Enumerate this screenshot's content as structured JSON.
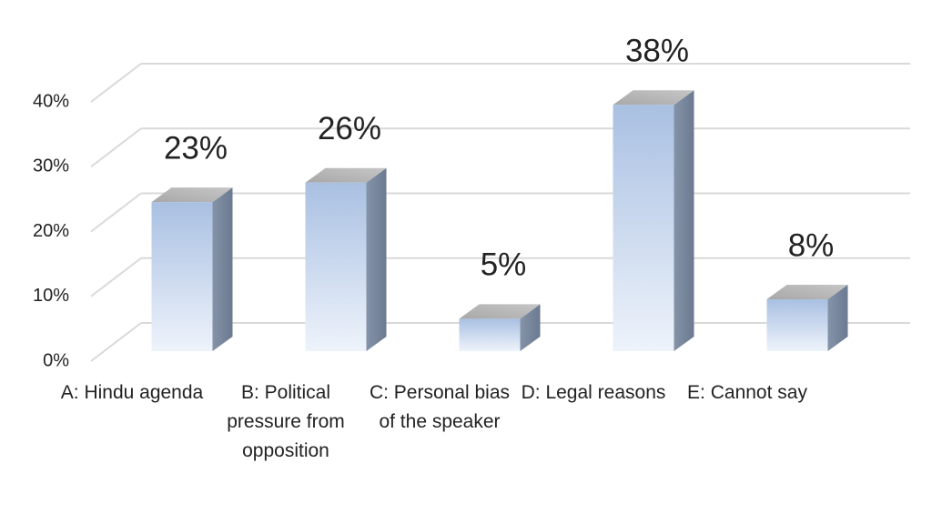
{
  "chart_data": {
    "type": "bar3d",
    "categories": [
      "A: Hindu agenda",
      "B: Political pressure from opposition",
      "C: Personal bias of the speaker",
      "D: Legal reasons",
      "E: Cannot say"
    ],
    "values": [
      23,
      26,
      5,
      38,
      8
    ],
    "value_labels": [
      "23%",
      "26%",
      "5%",
      "38%",
      "8%"
    ],
    "color": "#b8cbe6",
    "ylim": [
      0,
      40
    ],
    "yticks": [
      {
        "value": 0,
        "label": "0%"
      },
      {
        "value": 10,
        "label": "10%"
      },
      {
        "value": 20,
        "label": "20%"
      },
      {
        "value": 30,
        "label": "30%"
      },
      {
        "value": 40,
        "label": "40%"
      }
    ],
    "grid": true
  }
}
